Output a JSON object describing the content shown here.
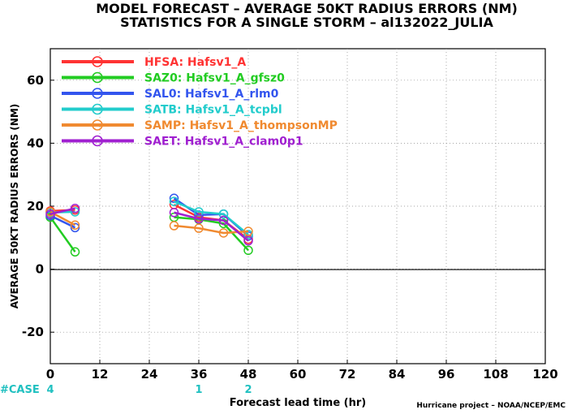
{
  "chart_data": {
    "type": "line",
    "title": "MODEL FORECAST – AVERAGE 50KT RADIUS ERRORS (NM)",
    "subtitle": "STATISTICS FOR A SINGLE STORM – al132022_JULIA",
    "xlabel": "Forecast lead time (hr)",
    "ylabel": "AVERAGE 50KT RADIUS ERRORS (NM)",
    "xlim": [
      0,
      120
    ],
    "ylim": [
      -30,
      70
    ],
    "xticks": [
      0,
      12,
      24,
      36,
      48,
      60,
      72,
      84,
      96,
      108,
      120
    ],
    "yticks": [
      -20,
      0,
      20,
      40,
      60
    ],
    "zero_line": true,
    "legend_position": "top-left",
    "case_label": "#CASE",
    "cases": [
      {
        "x": 0,
        "label": "4"
      },
      {
        "x": 36,
        "label": "1"
      },
      {
        "x": 48,
        "label": "2"
      }
    ],
    "credit": "Hurricane project – NOAA/NCEP/EMC",
    "series": [
      {
        "name": "HFSA:",
        "model": "Hafsv1_A",
        "color": "#ff3333",
        "segments": [
          [
            [
              0,
              18.5
            ],
            [
              6,
              18.8
            ]
          ],
          [
            [
              30,
              20.5
            ],
            [
              36,
              16.5
            ],
            [
              42,
              15.5
            ],
            [
              48,
              9.5
            ]
          ]
        ]
      },
      {
        "name": "SAZ0:",
        "model": "Hafsv1_A_gfsz0",
        "color": "#22cc22",
        "segments": [
          [
            [
              0,
              16.5
            ],
            [
              6,
              5.5
            ]
          ],
          [
            [
              30,
              16.5
            ],
            [
              36,
              15.8
            ],
            [
              42,
              14.5
            ],
            [
              48,
              6.0
            ]
          ]
        ]
      },
      {
        "name": "SAL0:",
        "model": "Hafsv1_A_rlm0",
        "color": "#3355ee",
        "segments": [
          [
            [
              0,
              17.0
            ],
            [
              6,
              13.2
            ]
          ],
          [
            [
              30,
              22.5
            ],
            [
              36,
              17.2
            ],
            [
              42,
              17.5
            ],
            [
              48,
              10.5
            ]
          ]
        ]
      },
      {
        "name": "SATB:",
        "model": "Hafsv1_A_tcpbl",
        "color": "#22cccc",
        "segments": [
          [
            [
              0,
              18.0
            ],
            [
              6,
              18.2
            ]
          ],
          [
            [
              30,
              21.5
            ],
            [
              36,
              18.2
            ],
            [
              42,
              17.5
            ],
            [
              48,
              11.0
            ]
          ]
        ]
      },
      {
        "name": "SAMP:",
        "model": "Hafsv1_A_thompsonMP",
        "color": "#f08a30",
        "segments": [
          [
            [
              0,
              18.2
            ],
            [
              6,
              14.0
            ]
          ],
          [
            [
              30,
              13.8
            ],
            [
              36,
              13.0
            ],
            [
              42,
              11.5
            ],
            [
              48,
              12.0
            ]
          ]
        ]
      },
      {
        "name": "SAET:",
        "model": "Hafsv1_A_clam0p1",
        "color": "#a020d0",
        "segments": [
          [
            [
              0,
              17.5
            ],
            [
              6,
              19.3
            ]
          ],
          [
            [
              30,
              18.0
            ],
            [
              36,
              16.0
            ],
            [
              42,
              15.5
            ],
            [
              48,
              9.0
            ]
          ]
        ]
      }
    ]
  }
}
